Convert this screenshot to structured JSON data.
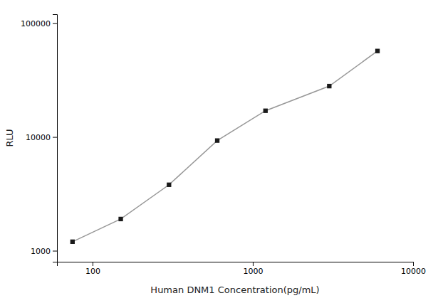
{
  "chart_data": {
    "type": "line",
    "x": [
      75,
      150,
      300,
      600,
      1200,
      3000,
      6000
    ],
    "series": [
      {
        "values": [
          1200,
          1900,
          3800,
          9300,
          17000,
          28000,
          57000
        ],
        "color": "#1a1a1a",
        "marker": "square",
        "line_style": "solid"
      }
    ],
    "xlabel": "Human DNM1 Concentration(pg/mL)",
    "ylabel": "RLU",
    "xlim": [
      60,
      10000
    ],
    "ylim": [
      800,
      120000
    ],
    "xticks": [
      100,
      1000,
      10000
    ],
    "yticks": [
      1000,
      10000,
      100000
    ],
    "log": true,
    "grid": false
  }
}
